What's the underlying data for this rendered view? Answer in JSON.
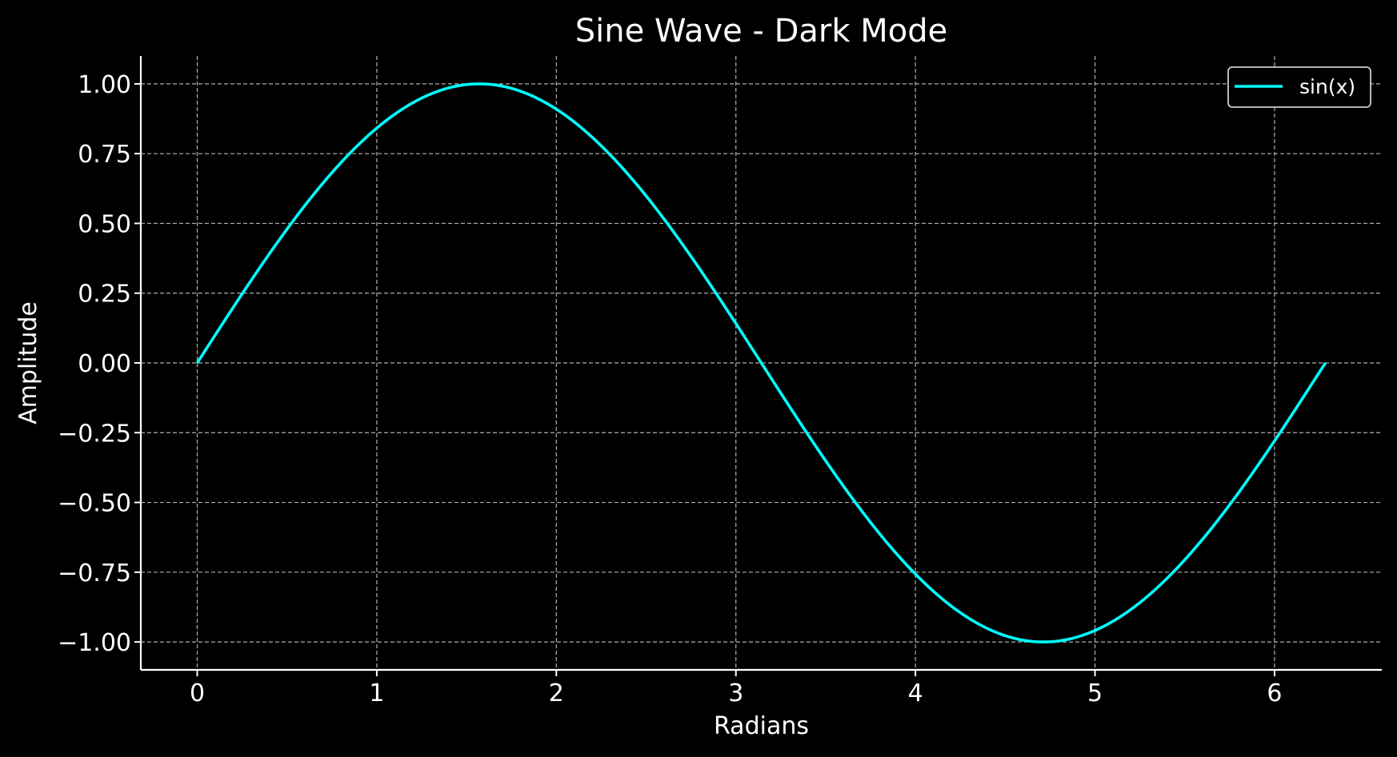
{
  "chart_data": {
    "type": "line",
    "title": "Sine Wave - Dark Mode",
    "xlabel": "Radians",
    "ylabel": "Amplitude",
    "xlim": [
      -0.3142,
      6.5973
    ],
    "ylim": [
      -1.1,
      1.1
    ],
    "xticks": [
      0,
      1,
      2,
      3,
      4,
      5,
      6
    ],
    "xtick_labels": [
      "0",
      "1",
      "2",
      "3",
      "4",
      "5",
      "6"
    ],
    "yticks": [
      1.0,
      0.75,
      0.5,
      0.25,
      0.0,
      -0.25,
      -0.5,
      -0.75,
      -1.0
    ],
    "ytick_labels": [
      "1.00",
      "0.75",
      "0.50",
      "0.25",
      "0.00",
      "−0.25",
      "−0.50",
      "−0.75",
      "−1.00"
    ],
    "grid": true,
    "grid_style": "dashed",
    "legend_position": "top-right",
    "background_color": "#000000",
    "axis_color": "#ffffff",
    "series": [
      {
        "name": "sin(x)",
        "color": "#00ffff",
        "x": [
          0,
          0.2027,
          0.4054,
          0.6081,
          0.8107,
          1.0134,
          1.2161,
          1.4188,
          1.6215,
          1.8242,
          2.0268,
          2.2295,
          2.4322,
          2.6349,
          2.8376,
          3.0403,
          3.2429,
          3.4456,
          3.6483,
          3.851,
          4.0537,
          4.2564,
          4.459,
          4.6617,
          4.8644,
          5.0671,
          5.2698,
          5.4725,
          5.6751,
          5.8778,
          6.0805,
          6.2832
        ],
        "y": [
          0,
          0.2013,
          0.3944,
          0.5713,
          0.7248,
          0.8486,
          0.9378,
          0.9884,
          0.9987,
          0.9681,
          0.8978,
          0.7907,
          0.6514,
          0.4853,
          0.2994,
          0.1012,
          -0.1012,
          -0.2994,
          -0.4853,
          -0.6514,
          -0.7907,
          -0.8978,
          -0.9681,
          -0.9987,
          -0.9884,
          -0.9378,
          -0.8486,
          -0.7248,
          -0.5713,
          -0.3944,
          -0.2013,
          0
        ]
      }
    ]
  }
}
